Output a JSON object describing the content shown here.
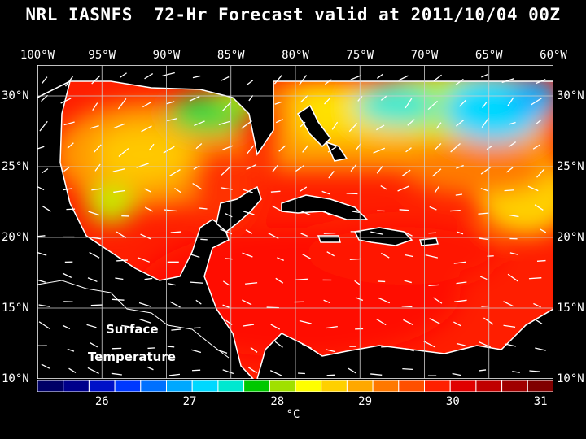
{
  "title": "NRL IASNFS  72-Hr Forecast valid at 2011/10/04 00Z",
  "lon_labels": [
    "100°W",
    "95°W",
    "90°W",
    "85°W",
    "80°W",
    "75°W",
    "70°W",
    "65°W",
    "60°W"
  ],
  "lat_labels": [
    "30°N",
    "25°N",
    "20°N",
    "15°N",
    "10°N"
  ],
  "map_labels": {
    "line1": "Surface",
    "line2": "Temperature"
  },
  "colorbar": {
    "ticks": [
      "26",
      "27",
      "28",
      "29",
      "30",
      "31"
    ],
    "unit": "°C",
    "colors": [
      "#000066",
      "#00008b",
      "#0010c8",
      "#0038ff",
      "#0070ff",
      "#00a8ff",
      "#00d8ff",
      "#00e8d0",
      "#00c800",
      "#a0e000",
      "#ffff00",
      "#ffd000",
      "#ffa800",
      "#ff7800",
      "#ff5000",
      "#ff2000",
      "#e00000",
      "#c00000",
      "#a00000",
      "#800000"
    ]
  },
  "colors": {
    "background": "#000000",
    "land": "#000000",
    "annotation": "#ffffff"
  }
}
